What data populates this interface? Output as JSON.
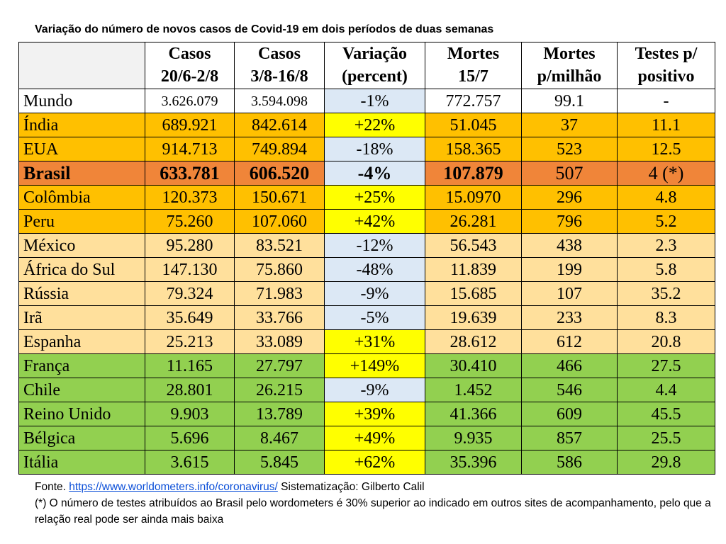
{
  "title": "Variação do número de novos casos de Covid-19 em dois períodos de duas semanas",
  "colors": {
    "row_world": "#ffffff",
    "row_orange": "#ffc000",
    "row_brasil": "#f08539",
    "row_peach": "#ffe09c",
    "row_green": "#92d050",
    "var_positive": "#ffff00",
    "var_negative": "#dce8f5",
    "link": "#0b4fd8"
  },
  "table": {
    "headers": [
      {
        "line1": "",
        "line2": ""
      },
      {
        "line1": "Casos",
        "line2": "20/6-2/8"
      },
      {
        "line1": "Casos",
        "line2": "3/8-16/8"
      },
      {
        "line1": "Variação",
        "line2": "(percent)"
      },
      {
        "line1": "Mortes",
        "line2": "15/7"
      },
      {
        "line1": "Mortes",
        "line2": "p/milhão"
      },
      {
        "line1": "Testes p/",
        "line2": "positivo"
      }
    ],
    "rows": [
      {
        "country": "Mundo",
        "casos1": "3.626.079",
        "casos2": "3.594.098",
        "variacao": "-1%",
        "mortes": "772.757",
        "mortes_milhao": "99.1",
        "testes": "-",
        "row_color": "#ffffff",
        "var_color": "#dce8f5"
      },
      {
        "country": "Índia",
        "casos1": "689.921",
        "casos2": "842.614",
        "variacao": "+22%",
        "mortes": "51.045",
        "mortes_milhao": "37",
        "testes": "11.1",
        "row_color": "#ffc000",
        "var_color": "#ffff00"
      },
      {
        "country": "EUA",
        "casos1": "914.713",
        "casos2": "749.894",
        "variacao": "-18%",
        "mortes": "158.365",
        "mortes_milhao": "523",
        "testes": "12.5",
        "row_color": "#ffc000",
        "var_color": "#dce8f5"
      },
      {
        "country": "Brasil",
        "casos1": "633.781",
        "casos2": "606.520",
        "variacao": "-4%",
        "mortes": "107.879",
        "mortes_milhao": "507",
        "testes": "4 (*)",
        "row_color": "#f08539",
        "var_color": "#dce8f5"
      },
      {
        "country": "Colômbia",
        "casos1": "120.373",
        "casos2": "150.671",
        "variacao": "+25%",
        "mortes": "15.0970",
        "mortes_milhao": "296",
        "testes": "4.8",
        "row_color": "#ffc000",
        "var_color": "#ffff00"
      },
      {
        "country": "Peru",
        "casos1": "75.260",
        "casos2": "107.060",
        "variacao": "+42%",
        "mortes": "26.281",
        "mortes_milhao": "796",
        "testes": "5.2",
        "row_color": "#ffc000",
        "var_color": "#ffff00"
      },
      {
        "country": "México",
        "casos1": "95.280",
        "casos2": "83.521",
        "variacao": "-12%",
        "mortes": "56.543",
        "mortes_milhao": "438",
        "testes": "2.3",
        "row_color": "#ffe09c",
        "var_color": "#dce8f5"
      },
      {
        "country": "África do Sul",
        "casos1": "147.130",
        "casos2": "75.860",
        "variacao": "-48%",
        "mortes": "11.839",
        "mortes_milhao": "199",
        "testes": "5.8",
        "row_color": "#ffe09c",
        "var_color": "#dce8f5"
      },
      {
        "country": "Rússia",
        "casos1": "79.324",
        "casos2": "71.983",
        "variacao": "-9%",
        "mortes": "15.685",
        "mortes_milhao": "107",
        "testes": "35.2",
        "row_color": "#ffe09c",
        "var_color": "#dce8f5"
      },
      {
        "country": "Irã",
        "casos1": "35.649",
        "casos2": "33.766",
        "variacao": "-5%",
        "mortes": "19.639",
        "mortes_milhao": "233",
        "testes": "8.3",
        "row_color": "#ffe09c",
        "var_color": "#dce8f5"
      },
      {
        "country": "Espanha",
        "casos1": "25.213",
        "casos2": "33.089",
        "variacao": "+31%",
        "mortes": "28.612",
        "mortes_milhao": "612",
        "testes": "20.8",
        "row_color": "#ffe09c",
        "var_color": "#ffff00"
      },
      {
        "country": "França",
        "casos1": "11.165",
        "casos2": "27.797",
        "variacao": "+149%",
        "mortes": "30.410",
        "mortes_milhao": "466",
        "testes": "27.5",
        "row_color": "#92d050",
        "var_color": "#ffff00"
      },
      {
        "country": "Chile",
        "casos1": "28.801",
        "casos2": "26.215",
        "variacao": "-9%",
        "mortes": "1.452",
        "mortes_milhao": "546",
        "testes": "4.4",
        "row_color": "#92d050",
        "var_color": "#dce8f5"
      },
      {
        "country": "Reino Unido",
        "casos1": "9.903",
        "casos2": "13.789",
        "variacao": "+39%",
        "mortes": "41.366",
        "mortes_milhao": "609",
        "testes": "45.5",
        "row_color": "#92d050",
        "var_color": "#ffff00"
      },
      {
        "country": "Bélgica",
        "casos1": "5.696",
        "casos2": "8.467",
        "variacao": "+49%",
        "mortes": "9.935",
        "mortes_milhao": "857",
        "testes": "25.5",
        "row_color": "#92d050",
        "var_color": "#ffff00"
      },
      {
        "country": "Itália",
        "casos1": "3.615",
        "casos2": "5.845",
        "variacao": "+62%",
        "mortes": "35.396",
        "mortes_milhao": "586",
        "testes": "29.8",
        "row_color": "#92d050",
        "var_color": "#ffff00"
      }
    ]
  },
  "footer": {
    "source_prefix": "Fonte. ",
    "source_link": "https://www.worldometers.info/coronavirus/",
    "source_suffix": " Sistematização: Gilberto Calil",
    "note": "(*) O número de testes atribuídos ao Brasil pelo wordometers é 30% superior ao indicado em outros sites de acompanhamento, pelo que a relação real pode ser ainda mais baixa"
  }
}
